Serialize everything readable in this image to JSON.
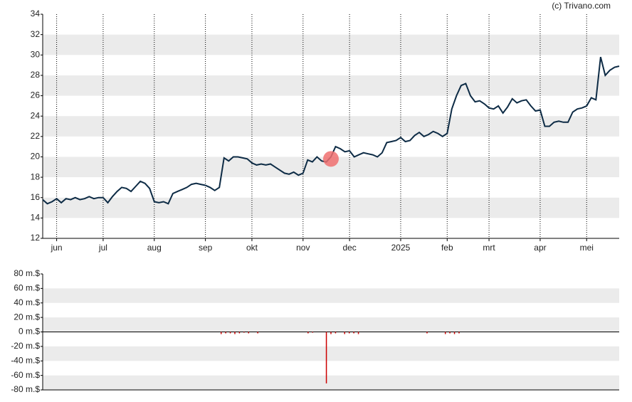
{
  "credit": "(c) Trivano.com",
  "chart_data": [
    {
      "type": "line",
      "series": [
        {
          "name": "koers",
          "color": "#0d2b45",
          "values": [
            15.8,
            15.4,
            15.6,
            15.9,
            15.5,
            15.9,
            15.8,
            16.0,
            15.8,
            15.9,
            16.1,
            15.9,
            16.0,
            16.0,
            15.5,
            16.1,
            16.6,
            17.0,
            16.9,
            16.6,
            17.1,
            17.6,
            17.4,
            16.9,
            15.6,
            15.5,
            15.6,
            15.4,
            16.4,
            16.6,
            16.8,
            17.0,
            17.3,
            17.4,
            17.3,
            17.2,
            17.0,
            16.7,
            17.0,
            19.9,
            19.6,
            20.0,
            20.0,
            19.9,
            19.8,
            19.4,
            19.2,
            19.3,
            19.2,
            19.3,
            19.0,
            18.7,
            18.4,
            18.3,
            18.5,
            18.2,
            18.4,
            19.7,
            19.5,
            20.0,
            19.6,
            19.5,
            20.0,
            21.0,
            20.8,
            20.5,
            20.6,
            20.0,
            20.2,
            20.4,
            20.3,
            20.2,
            20.0,
            20.4,
            21.4,
            21.5,
            21.6,
            21.9,
            21.5,
            21.6,
            22.1,
            22.4,
            22.0,
            22.2,
            22.5,
            22.3,
            22.0,
            22.3,
            24.7,
            26.0,
            27.0,
            27.2,
            26.0,
            25.4,
            25.5,
            25.2,
            24.8,
            24.7,
            25.0,
            24.3,
            24.9,
            25.7,
            25.3,
            25.5,
            25.6,
            25.0,
            24.5,
            24.6,
            23.0,
            23.0,
            23.4,
            23.5,
            23.4,
            23.4,
            24.4,
            24.7,
            24.8,
            25.0,
            25.8,
            25.6,
            29.8,
            28.0,
            28.5,
            28.8,
            28.9
          ]
        }
      ],
      "marker": {
        "x": 62,
        "y": 19.8,
        "color": "#f07070"
      },
      "xlim": [
        0,
        124
      ],
      "xticks": [
        {
          "value": 3,
          "label": "jun"
        },
        {
          "value": 13,
          "label": "jul"
        },
        {
          "value": 24,
          "label": "aug"
        },
        {
          "value": 35,
          "label": "sep"
        },
        {
          "value": 45,
          "label": "okt"
        },
        {
          "value": 56,
          "label": "nov"
        },
        {
          "value": 66,
          "label": "dec"
        },
        {
          "value": 77,
          "label": "2025"
        },
        {
          "value": 87,
          "label": "feb"
        },
        {
          "value": 96,
          "label": "mrt"
        },
        {
          "value": 107,
          "label": "apr"
        },
        {
          "value": 117,
          "label": "mei"
        }
      ],
      "ylim": [
        12,
        34
      ],
      "yticks": [
        12,
        14,
        16,
        18,
        20,
        22,
        24,
        26,
        28,
        30,
        32,
        34
      ]
    },
    {
      "type": "bar",
      "color": "#cc0000",
      "values": [
        0,
        0,
        0,
        0,
        0,
        0,
        0,
        0,
        0,
        0,
        0,
        0,
        0,
        0,
        0,
        0,
        0,
        0,
        0,
        0,
        0,
        0,
        0,
        0,
        0,
        0,
        0,
        0,
        0,
        0,
        0,
        0,
        0,
        0,
        0,
        0,
        0,
        0,
        0,
        -3,
        -2,
        -2,
        -3,
        -2,
        -1,
        -2,
        0,
        -2,
        0,
        0,
        0,
        0,
        0,
        0,
        0,
        0,
        0,
        0,
        -2,
        -1,
        0,
        0,
        -71,
        -3,
        -2,
        0,
        -3,
        -2,
        -2,
        -3,
        0,
        0,
        0,
        0,
        0,
        0,
        0,
        0,
        0,
        0,
        0,
        0,
        0,
        0,
        -2,
        0,
        0,
        0,
        -3,
        -2,
        -3,
        -2,
        0,
        0,
        0,
        0,
        0,
        0,
        0,
        0,
        0,
        0,
        0,
        0,
        0,
        0,
        0,
        0,
        0,
        0,
        0,
        0,
        0,
        0,
        0,
        0,
        0,
        0,
        0,
        0,
        0,
        0,
        0,
        0,
        0,
        0,
        0
      ],
      "xlim": [
        0,
        124
      ],
      "ylim": [
        -80,
        80
      ],
      "yticks": [
        {
          "value": -80,
          "label": "-80 m.$"
        },
        {
          "value": -60,
          "label": "-60 m.$"
        },
        {
          "value": -40,
          "label": "-40 m.$"
        },
        {
          "value": -20,
          "label": "-20 m.$"
        },
        {
          "value": 0,
          "label": "0 m.$"
        },
        {
          "value": 20,
          "label": "20 m.$"
        },
        {
          "value": 40,
          "label": "40 m.$"
        },
        {
          "value": 60,
          "label": "60 m.$"
        },
        {
          "value": 80,
          "label": "80 m.$"
        }
      ]
    }
  ]
}
